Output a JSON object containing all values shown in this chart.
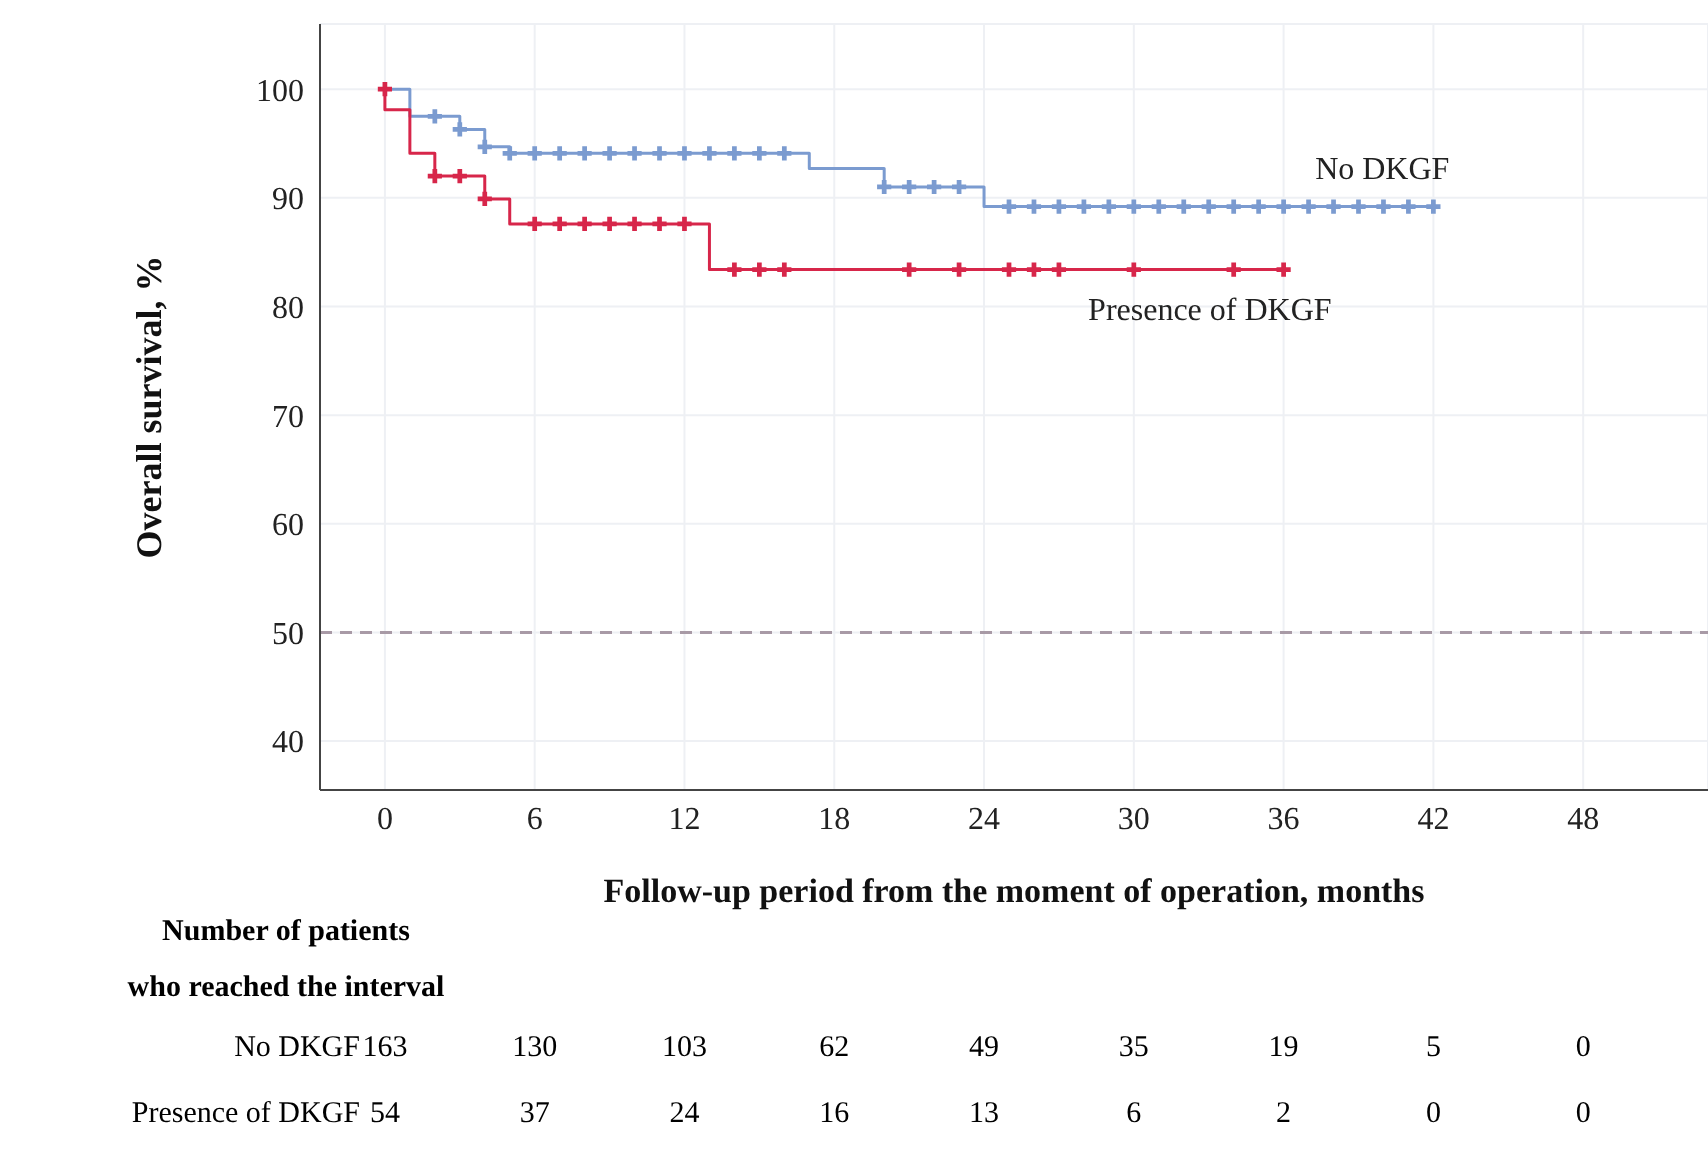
{
  "chart_data": {
    "type": "step",
    "xlabel": "Follow-up period from the moment of operation, months",
    "ylabel": "Overall survival, %",
    "series": [
      {
        "name": "No DKGF",
        "color": "#7b9bd0",
        "x": [
          0,
          1,
          3,
          4,
          5,
          17,
          20,
          24,
          42
        ],
        "values": [
          100,
          97.5,
          96.3,
          94.7,
          94.1,
          92.7,
          91.0,
          89.2,
          89.2
        ]
      },
      {
        "name": "Presence of DKGF",
        "color": "#d7264a",
        "x": [
          0,
          0,
          1,
          2,
          4,
          5,
          13,
          36
        ],
        "values": [
          100,
          98.1,
          94.1,
          92.0,
          89.9,
          87.6,
          83.4,
          83.4
        ]
      },
      {
        "type": "scatter",
        "marker": "cross",
        "color": "#7b9bd0",
        "x": [
          2,
          3,
          4,
          5,
          6,
          7,
          8,
          9,
          10,
          11,
          12,
          13,
          14,
          15,
          16,
          20,
          21,
          22,
          23,
          25,
          26,
          27,
          28,
          29,
          30,
          31,
          32,
          33,
          34,
          35,
          36,
          37,
          38,
          39,
          40,
          41,
          42
        ],
        "values": [
          97.5,
          96.3,
          94.7,
          94.1,
          94.1,
          94.1,
          94.1,
          94.1,
          94.1,
          94.1,
          94.1,
          94.1,
          94.1,
          94.1,
          94.1,
          91.0,
          91.0,
          91.0,
          91.0,
          89.2,
          89.2,
          89.2,
          89.2,
          89.2,
          89.2,
          89.2,
          89.2,
          89.2,
          89.2,
          89.2,
          89.2,
          89.2,
          89.2,
          89.2,
          89.2,
          89.2,
          89.2
        ]
      },
      {
        "type": "scatter",
        "marker": "cross",
        "color": "#d7264a",
        "x": [
          0,
          2,
          3,
          4,
          6,
          7,
          8,
          9,
          10,
          11,
          12,
          14,
          15,
          16,
          21,
          23,
          25,
          26,
          27,
          30,
          34,
          36
        ],
        "values": [
          100,
          92.0,
          92.0,
          89.9,
          87.6,
          87.6,
          87.6,
          87.6,
          87.6,
          87.6,
          87.6,
          83.4,
          83.4,
          83.4,
          83.4,
          83.4,
          83.4,
          83.4,
          83.4,
          83.4,
          83.4,
          83.4
        ]
      }
    ],
    "xlim": [
      -2.6,
      53
    ],
    "xticks": [
      0,
      6,
      12,
      18,
      24,
      30,
      36,
      42,
      48
    ],
    "ylim": [
      35.5,
      106
    ],
    "yticks": [
      40,
      50,
      60,
      70,
      80,
      90,
      100
    ],
    "grid": true,
    "ref_lines": [
      {
        "axis": "y",
        "value": 50,
        "color": "#a89aa6",
        "line_style": "dashed"
      }
    ],
    "annotations": [
      "Number of patients",
      "who reached the interval",
      "163",
      "130",
      "103",
      "62",
      "49",
      "35",
      "19",
      "5",
      "0",
      "54",
      "37",
      "24",
      "16",
      "13",
      "6",
      "2",
      "0",
      "0"
    ]
  }
}
